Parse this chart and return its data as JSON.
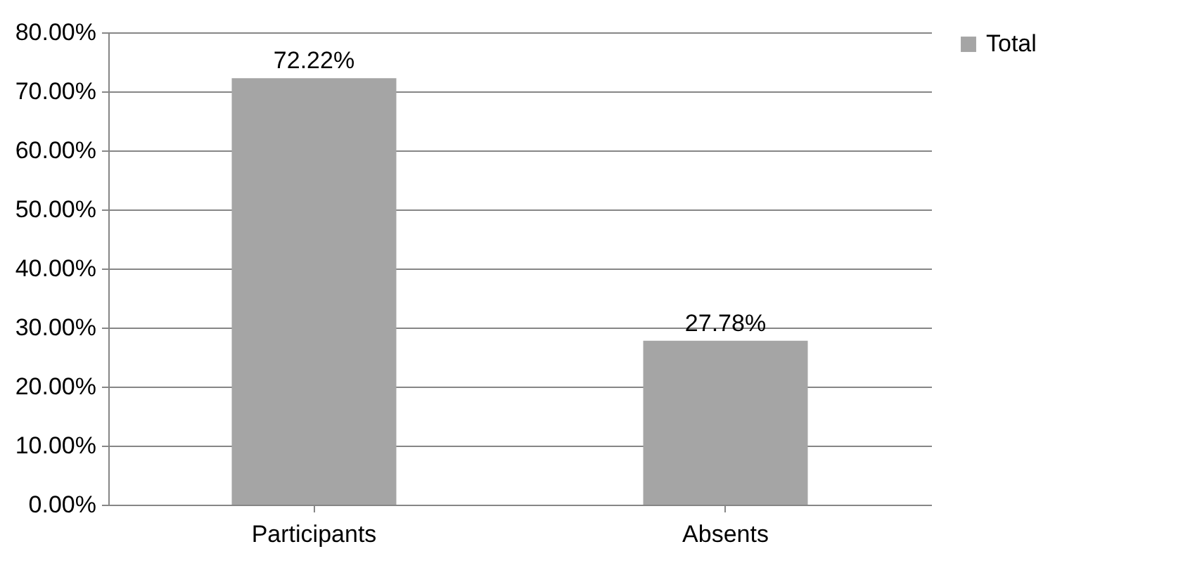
{
  "chart_data": {
    "type": "bar",
    "categories": [
      "Participants",
      "Absents"
    ],
    "series": [
      {
        "name": "Total",
        "color": "#a5a5a5",
        "values": [
          72.22,
          27.78
        ],
        "value_labels": [
          "72.22%",
          "27.78%"
        ]
      }
    ],
    "ylim": [
      0,
      80
    ],
    "yticks": [
      {
        "value": 0,
        "label": "0.00%"
      },
      {
        "value": 10,
        "label": "10.00%"
      },
      {
        "value": 20,
        "label": "20.00%"
      },
      {
        "value": 30,
        "label": "30.00%"
      },
      {
        "value": 40,
        "label": "40.00%"
      },
      {
        "value": 50,
        "label": "50.00%"
      },
      {
        "value": 60,
        "label": "60.00%"
      },
      {
        "value": 70,
        "label": "70.00%"
      },
      {
        "value": 80,
        "label": "80.00%"
      }
    ],
    "grid": "y",
    "legend": "right"
  }
}
